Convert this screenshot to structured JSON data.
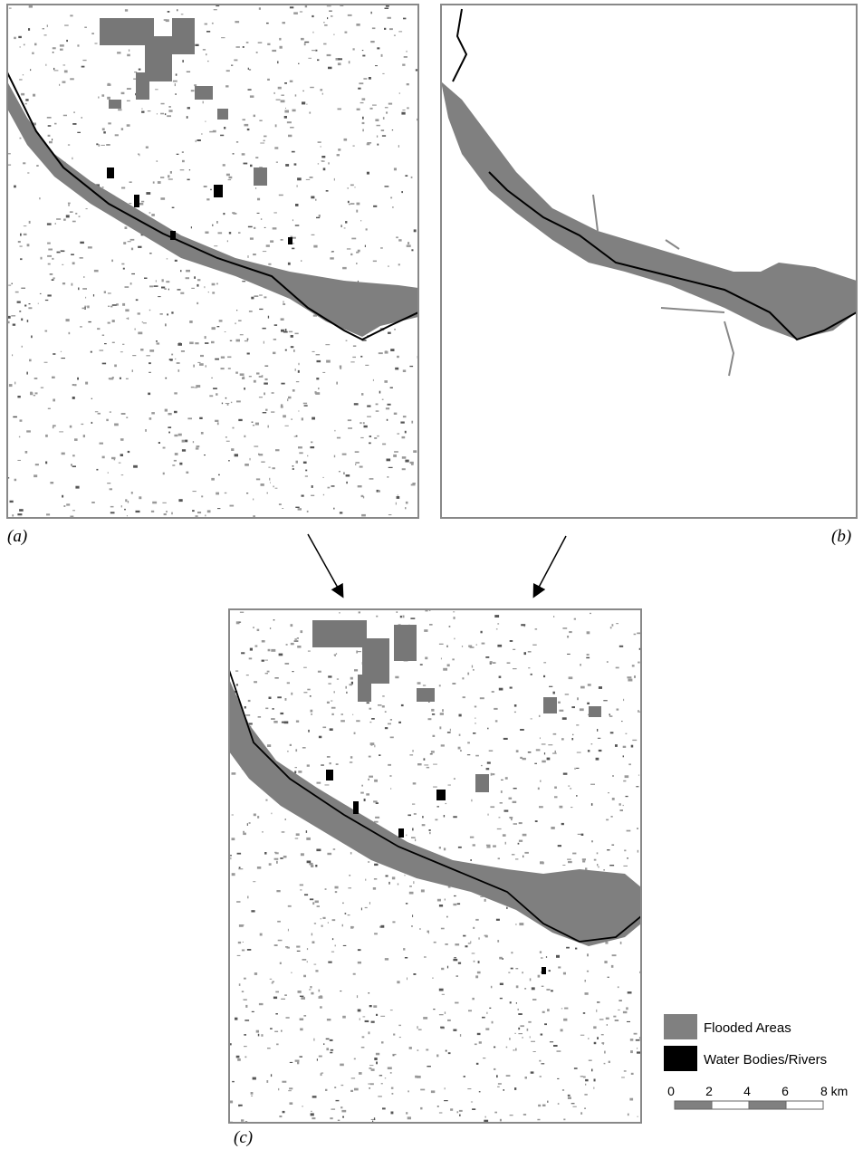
{
  "panels": {
    "a": {
      "label": "(a)"
    },
    "b": {
      "label": "(b)"
    },
    "c": {
      "label": "(c)"
    }
  },
  "legend": {
    "items": [
      {
        "label": "Flooded Areas"
      },
      {
        "label": "Water Bodies/Rivers"
      }
    ]
  },
  "scale_bar": {
    "labels": [
      "0",
      "2",
      "4",
      "6",
      "8 km"
    ]
  }
}
